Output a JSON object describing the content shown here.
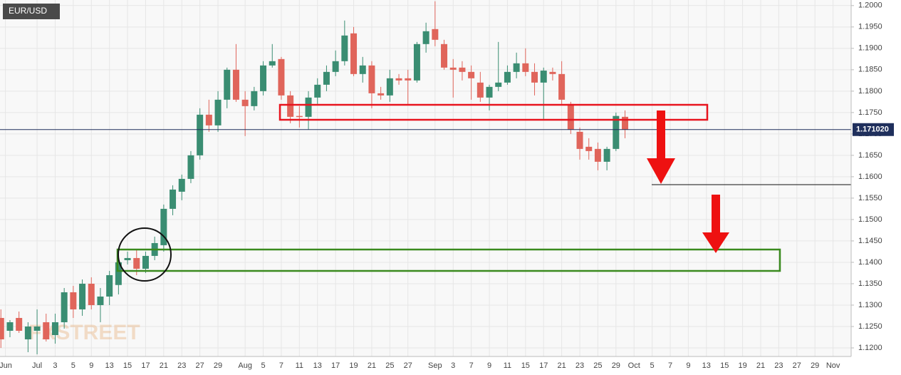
{
  "chart_data": {
    "type": "candlestick",
    "title": "EUR/USD",
    "watermark": "FXSTREET",
    "up_color": "#3a8d72",
    "down_color": "#e0655b",
    "x": [
      -4,
      -3,
      -2,
      -1,
      0,
      1,
      2,
      3,
      4,
      5,
      6,
      7,
      8,
      9,
      10,
      11,
      12,
      13,
      14,
      15,
      16,
      17,
      18,
      19,
      20,
      21,
      22,
      23,
      24,
      25,
      26,
      27,
      28,
      29,
      30,
      31,
      32,
      33,
      34,
      35,
      36,
      37,
      38,
      39,
      40,
      41,
      42,
      43,
      44,
      45,
      46,
      47,
      48,
      49,
      50,
      51,
      52,
      53,
      54,
      55,
      56,
      57,
      58,
      59,
      60,
      61,
      62,
      63,
      64,
      65
    ],
    "open": [
      1.127,
      1.124,
      1.127,
      1.122,
      1.124,
      1.126,
      1.123,
      1.126,
      1.133,
      1.129,
      1.135,
      1.13,
      1.132,
      1.1347,
      1.1405,
      1.141,
      1.1385,
      1.1415,
      1.144,
      1.1525,
      1.1565,
      1.1595,
      1.165,
      1.1745,
      1.172,
      1.178,
      1.185,
      1.178,
      1.1765,
      1.18,
      1.186,
      1.1875,
      1.179,
      1.1742,
      1.174,
      1.1785,
      1.1815,
      1.1845,
      1.187,
      1.1935,
      1.184,
      1.186,
      1.1795,
      1.179,
      1.183,
      1.183,
      1.1825,
      1.191,
      1.1945,
      1.191,
      1.1855,
      1.1855,
      1.1845,
      1.182,
      1.1785,
      1.181,
      1.182,
      1.1845,
      1.1865,
      1.1845,
      1.182,
      1.1845,
      1.184,
      1.177,
      1.1705,
      1.167,
      1.1665,
      1.1635,
      1.1665,
      1.174
    ],
    "high": [
      1.129,
      1.1265,
      1.1285,
      1.126,
      1.129,
      1.128,
      1.128,
      1.134,
      1.1345,
      1.136,
      1.1365,
      1.134,
      1.138,
      1.141,
      1.1425,
      1.143,
      1.1425,
      1.146,
      1.1535,
      1.158,
      1.1605,
      1.166,
      1.176,
      1.178,
      1.18,
      1.1855,
      1.191,
      1.18,
      1.181,
      1.187,
      1.191,
      1.188,
      1.18,
      1.1765,
      1.18,
      1.183,
      1.186,
      1.1895,
      1.1965,
      1.195,
      1.188,
      1.187,
      1.181,
      1.185,
      1.184,
      1.185,
      1.1915,
      1.196,
      1.201,
      1.192,
      1.1875,
      1.187,
      1.186,
      1.1845,
      1.1815,
      1.1915,
      1.186,
      1.189,
      1.19,
      1.1865,
      1.1855,
      1.1855,
      1.187,
      1.1775,
      1.1715,
      1.169,
      1.168,
      1.167,
      1.175,
      1.1755
    ],
    "low": [
      1.12,
      1.1225,
      1.1235,
      1.119,
      1.1185,
      1.1215,
      1.121,
      1.1245,
      1.127,
      1.1275,
      1.129,
      1.126,
      1.13,
      1.1325,
      1.1395,
      1.137,
      1.1375,
      1.1405,
      1.1425,
      1.151,
      1.1545,
      1.1585,
      1.164,
      1.1705,
      1.1705,
      1.176,
      1.1775,
      1.1695,
      1.1755,
      1.179,
      1.1855,
      1.178,
      1.1725,
      1.1715,
      1.171,
      1.177,
      1.18,
      1.1835,
      1.186,
      1.1835,
      1.182,
      1.176,
      1.178,
      1.1775,
      1.1815,
      1.177,
      1.182,
      1.189,
      1.1905,
      1.185,
      1.1785,
      1.1825,
      1.178,
      1.1775,
      1.1755,
      1.18,
      1.1815,
      1.183,
      1.1835,
      1.179,
      1.1735,
      1.1825,
      1.177,
      1.17,
      1.164,
      1.164,
      1.1615,
      1.1615,
      1.166,
      1.169
    ],
    "close": [
      1.122,
      1.126,
      1.124,
      1.125,
      1.125,
      1.122,
      1.126,
      1.133,
      1.129,
      1.135,
      1.13,
      1.132,
      1.137,
      1.14,
      1.141,
      1.1385,
      1.1415,
      1.1445,
      1.1525,
      1.157,
      1.1595,
      1.165,
      1.1745,
      1.172,
      1.178,
      1.185,
      1.178,
      1.1765,
      1.18,
      1.186,
      1.187,
      1.179,
      1.174,
      1.174,
      1.1785,
      1.1815,
      1.1845,
      1.187,
      1.193,
      1.184,
      1.186,
      1.1795,
      1.179,
      1.183,
      1.1825,
      1.1825,
      1.191,
      1.194,
      1.192,
      1.1855,
      1.185,
      1.1845,
      1.183,
      1.1785,
      1.181,
      1.182,
      1.1845,
      1.1865,
      1.1845,
      1.182,
      1.1848,
      1.184,
      1.178,
      1.171,
      1.1665,
      1.166,
      1.1635,
      1.1665,
      1.1742,
      1.171
    ],
    "xlim": [
      -4.1,
      90
    ],
    "ylim": [
      1.118,
      1.2013
    ],
    "xticks": [
      {
        "value": -3.5,
        "label": "Jun"
      },
      {
        "value": 0,
        "label": "Jul"
      },
      {
        "value": 2,
        "label": "3"
      },
      {
        "value": 4,
        "label": "5"
      },
      {
        "value": 6,
        "label": "9"
      },
      {
        "value": 8,
        "label": "13"
      },
      {
        "value": 10,
        "label": "15"
      },
      {
        "value": 12,
        "label": "17"
      },
      {
        "value": 14,
        "label": "21"
      },
      {
        "value": 16,
        "label": "23"
      },
      {
        "value": 18,
        "label": "27"
      },
      {
        "value": 20,
        "label": "29"
      },
      {
        "value": 23,
        "label": "Aug"
      },
      {
        "value": 25,
        "label": "5"
      },
      {
        "value": 27,
        "label": "7"
      },
      {
        "value": 29,
        "label": "11"
      },
      {
        "value": 31,
        "label": "13"
      },
      {
        "value": 33,
        "label": "17"
      },
      {
        "value": 35,
        "label": "19"
      },
      {
        "value": 37,
        "label": "21"
      },
      {
        "value": 39,
        "label": "25"
      },
      {
        "value": 41,
        "label": "27"
      },
      {
        "value": 44,
        "label": "Sep"
      },
      {
        "value": 46,
        "label": "3"
      },
      {
        "value": 48,
        "label": "7"
      },
      {
        "value": 50,
        "label": "9"
      },
      {
        "value": 52,
        "label": "11"
      },
      {
        "value": 54,
        "label": "15"
      },
      {
        "value": 56,
        "label": "17"
      },
      {
        "value": 58,
        "label": "21"
      },
      {
        "value": 60,
        "label": "23"
      },
      {
        "value": 62,
        "label": "25"
      },
      {
        "value": 64,
        "label": "29"
      },
      {
        "value": 66,
        "label": "Oct"
      },
      {
        "value": 68,
        "label": "5"
      },
      {
        "value": 70,
        "label": "7"
      },
      {
        "value": 72,
        "label": "9"
      },
      {
        "value": 74,
        "label": "13"
      },
      {
        "value": 76,
        "label": "15"
      },
      {
        "value": 78,
        "label": "19"
      },
      {
        "value": 80,
        "label": "21"
      },
      {
        "value": 82,
        "label": "23"
      },
      {
        "value": 84,
        "label": "27"
      },
      {
        "value": 86,
        "label": "29"
      },
      {
        "value": 88,
        "label": "Nov"
      }
    ],
    "yticks": [
      {
        "value": 1.2,
        "label": "1.2000"
      },
      {
        "value": 1.195,
        "label": "1.1950"
      },
      {
        "value": 1.19,
        "label": "1.1900"
      },
      {
        "value": 1.185,
        "label": "1.1850"
      },
      {
        "value": 1.18,
        "label": "1.1800"
      },
      {
        "value": 1.175,
        "label": "1.1750"
      },
      {
        "value": 1.17,
        "label": "1.1700"
      },
      {
        "value": 1.165,
        "label": "1.1650"
      },
      {
        "value": 1.16,
        "label": "1.1600"
      },
      {
        "value": 1.155,
        "label": "1.1550"
      },
      {
        "value": 1.15,
        "label": "1.1500"
      },
      {
        "value": 1.145,
        "label": "1.1450"
      },
      {
        "value": 1.14,
        "label": "1.1400"
      },
      {
        "value": 1.135,
        "label": "1.1350"
      },
      {
        "value": 1.13,
        "label": "1.1300"
      },
      {
        "value": 1.125,
        "label": "1.1250"
      },
      {
        "value": 1.12,
        "label": "1.1200"
      }
    ],
    "last_price": {
      "value": 1.17102,
      "label": "1.171020"
    },
    "grid": true
  }
}
